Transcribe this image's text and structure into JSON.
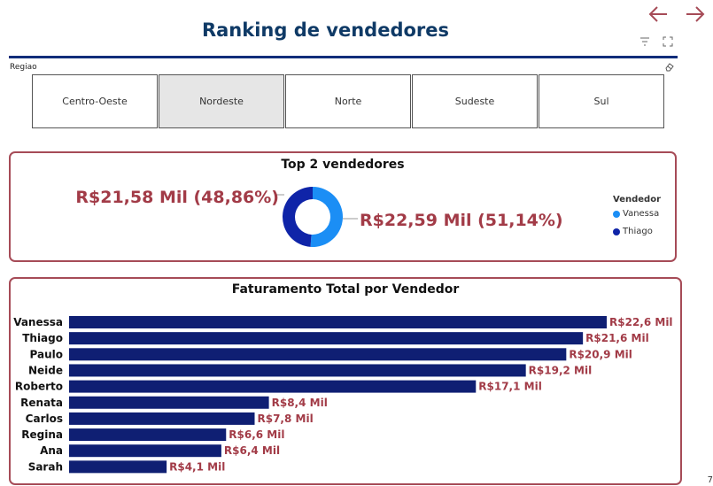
{
  "page": {
    "title": "Ranking de vendedores",
    "corner_text": "7"
  },
  "colors": {
    "title": "#0f3a66",
    "accent_border": "#a64b57",
    "bar": "#0f1f73",
    "data_label": "#a23b47",
    "vanessa": "#1b8ef5",
    "thiago": "#0f24a8",
    "nav_arrow": "#a64b57"
  },
  "icons": {
    "back": "arrow-left-icon",
    "forward": "arrow-right-icon",
    "filter": "filter-icon",
    "focus": "focus-mode-icon",
    "eraser": "eraser-icon"
  },
  "slicer": {
    "label": "Regiao",
    "options": [
      {
        "label": "Centro-Oeste",
        "selected": false
      },
      {
        "label": "Nordeste",
        "selected": true
      },
      {
        "label": "Norte",
        "selected": false
      },
      {
        "label": "Sudeste",
        "selected": false
      },
      {
        "label": "Sul",
        "selected": false
      }
    ]
  },
  "chart_data": [
    {
      "type": "pie",
      "title": "Top 2 vendedores",
      "legend_title": "Vendedor",
      "legend_position": "right",
      "slices": [
        {
          "name": "Vanessa",
          "percent": 51.14,
          "label": "R$22,59 Mil (51,14%)",
          "color": "#1b8ef5"
        },
        {
          "name": "Thiago",
          "percent": 48.86,
          "label": "R$21,58 Mil (48,86%)",
          "color": "#0f24a8"
        }
      ]
    },
    {
      "type": "bar",
      "orientation": "horizontal",
      "title": "Faturamento Total por Vendedor",
      "categories": [
        "Vanessa",
        "Thiago",
        "Paulo",
        "Neide",
        "Roberto",
        "Renata",
        "Carlos",
        "Regina",
        "Ana",
        "Sarah"
      ],
      "values": [
        22.6,
        21.6,
        20.9,
        19.2,
        17.1,
        8.4,
        7.8,
        6.6,
        6.4,
        4.1
      ],
      "labels": [
        "R$22,6 Mil",
        "R$21,6 Mil",
        "R$20,9 Mil",
        "R$19,2 Mil",
        "R$17,1 Mil",
        "R$8,4 Mil",
        "R$7,8 Mil",
        "R$6,6 Mil",
        "R$6,4 Mil",
        "R$4,1 Mil"
      ],
      "unit": "R$ Mil",
      "xlim": [
        0,
        22.6
      ],
      "grid": false
    }
  ]
}
